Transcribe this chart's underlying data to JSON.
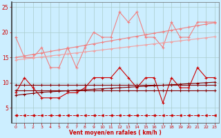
{
  "x": [
    0,
    1,
    2,
    3,
    4,
    5,
    6,
    7,
    8,
    9,
    10,
    11,
    12,
    13,
    14,
    15,
    16,
    17,
    18,
    19,
    20,
    21,
    22,
    23
  ],
  "series": {
    "pink_jagged": [
      19,
      15,
      15,
      17,
      13,
      13,
      17,
      13,
      17,
      20,
      19,
      19,
      24,
      22,
      24,
      19,
      19,
      17,
      22,
      19,
      19,
      22,
      22,
      22
    ],
    "pink_trend1": [
      15.0,
      15.3,
      15.6,
      15.9,
      16.2,
      16.5,
      16.8,
      17.1,
      17.4,
      17.7,
      18.0,
      18.3,
      18.6,
      18.9,
      19.2,
      19.5,
      19.8,
      20.1,
      20.4,
      20.7,
      21.0,
      21.3,
      21.6,
      21.9
    ],
    "pink_trend2": [
      14.5,
      14.7,
      14.9,
      15.1,
      15.3,
      15.5,
      15.7,
      15.9,
      16.1,
      16.3,
      16.5,
      16.7,
      16.9,
      17.1,
      17.3,
      17.5,
      17.7,
      17.9,
      18.1,
      18.3,
      18.5,
      18.7,
      18.9,
      19.1
    ],
    "red_jagged": [
      8,
      11,
      9,
      7,
      7,
      7,
      8,
      8,
      9,
      11,
      11,
      11,
      13,
      11,
      9,
      11,
      11,
      6,
      11,
      9,
      9,
      13,
      11,
      11
    ],
    "darkred_flat1": [
      9.5,
      9.5,
      9.5,
      9.5,
      9.5,
      9.5,
      9.5,
      9.5,
      9.5,
      9.5,
      9.5,
      9.5,
      9.5,
      9.5,
      9.5,
      9.5,
      9.5,
      9.5,
      9.5,
      9.5,
      9.5,
      9.5,
      9.5,
      9.5
    ],
    "darkred_flat2": [
      8.5,
      8.5,
      8.5,
      8.5,
      8.5,
      8.5,
      8.5,
      8.5,
      8.5,
      8.5,
      8.5,
      8.5,
      8.5,
      8.5,
      8.5,
      8.5,
      8.5,
      8.5,
      8.5,
      8.5,
      8.5,
      8.5,
      8.5,
      8.5
    ],
    "darkred_rise": [
      7.5,
      7.7,
      7.9,
      8.1,
      8.2,
      8.3,
      8.4,
      8.5,
      8.6,
      8.7,
      8.8,
      8.9,
      9.0,
      9.1,
      9.2,
      9.3,
      9.4,
      9.5,
      9.6,
      9.7,
      9.8,
      9.9,
      10.0,
      10.1
    ],
    "dashed_bottom": [
      3.5,
      3.5,
      3.5,
      3.5,
      3.5,
      3.5,
      3.5,
      3.5,
      3.5,
      3.5,
      3.5,
      3.5,
      3.5,
      3.5,
      3.5,
      3.5,
      3.5,
      3.5,
      3.5,
      3.5,
      3.5,
      3.5,
      3.5,
      3.5
    ]
  },
  "background_color": "#cceeff",
  "grid_color": "#aacccc",
  "xlabel": "Vent moyen/en rafales ( km/h )",
  "ylim": [
    2,
    26
  ],
  "xlim": [
    -0.5,
    23.5
  ],
  "yticks": [
    5,
    10,
    15,
    20,
    25
  ],
  "xticks": [
    0,
    1,
    2,
    3,
    4,
    5,
    6,
    7,
    8,
    9,
    10,
    11,
    12,
    13,
    14,
    15,
    16,
    17,
    18,
    19,
    20,
    21,
    22,
    23
  ],
  "colors": {
    "pink_jagged": "#f08080",
    "pink_trend1": "#f08080",
    "pink_trend2": "#f0a0a0",
    "red_jagged": "#cc0000",
    "darkred_flat1": "#880000",
    "darkred_flat2": "#880000",
    "darkred_rise": "#880000",
    "dashed_bottom": "#cc0000"
  }
}
